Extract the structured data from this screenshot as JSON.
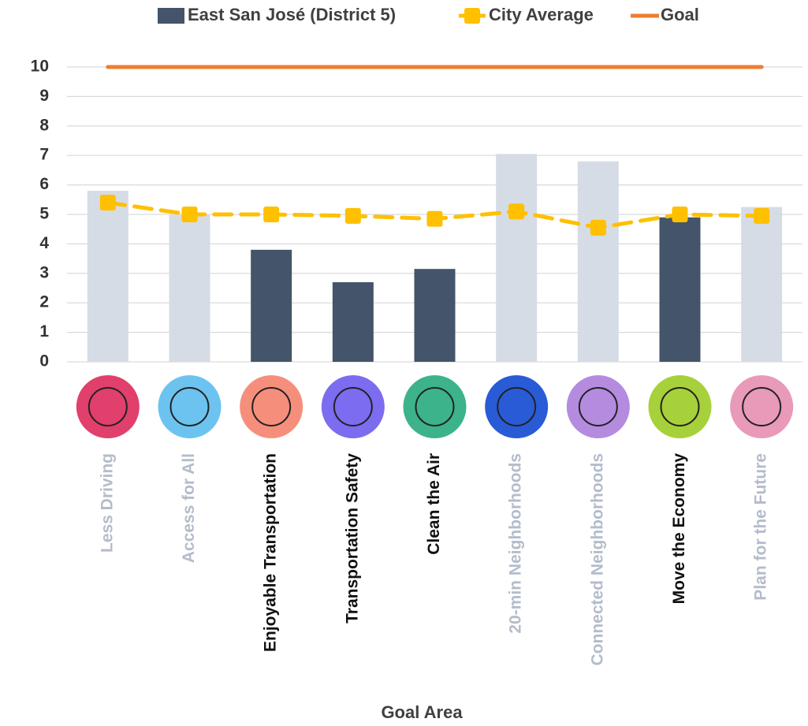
{
  "chart_data": {
    "type": "bar",
    "x_label": "Goal Area",
    "categories": [
      "Less Driving",
      "Access for All",
      "Enjoyable Transportation",
      "Transportation Safety",
      "Clean the Air",
      "20-min Neighborhoods",
      "Connected Neighborhoods",
      "Move the Economy",
      "Plan for the Future"
    ],
    "category_label_colors": [
      "#b4bccb",
      "#b4bccb",
      "#111111",
      "#111111",
      "#111111",
      "#b4bccb",
      "#b4bccb",
      "#111111",
      "#b4bccb"
    ],
    "series": [
      {
        "name": "East San José (District 5)",
        "type": "bar",
        "color": "#44546a",
        "colors": [
          "#d6dce5",
          "#d6dce5",
          "#44546a",
          "#44546a",
          "#44546a",
          "#d6dce5",
          "#d6dce5",
          "#44546a",
          "#d6dce5"
        ],
        "values": [
          5.8,
          5.0,
          3.8,
          2.7,
          3.15,
          7.05,
          6.8,
          4.9,
          5.25
        ]
      },
      {
        "name": "City Average",
        "type": "line",
        "color": "#ffc000",
        "dashed": true,
        "marker": "square",
        "values": [
          5.4,
          5.0,
          5.0,
          4.95,
          4.85,
          5.1,
          4.55,
          5.0,
          4.95
        ]
      },
      {
        "name": "Goal",
        "type": "line",
        "color": "#ed7d31",
        "dashed": false,
        "values": [
          10,
          10,
          10,
          10,
          10,
          10,
          10,
          10,
          10
        ]
      }
    ],
    "ylim": [
      0,
      10
    ],
    "yticks": [
      0,
      1,
      2,
      3,
      4,
      5,
      6,
      7,
      8,
      9,
      10
    ],
    "grid": true
  }
}
